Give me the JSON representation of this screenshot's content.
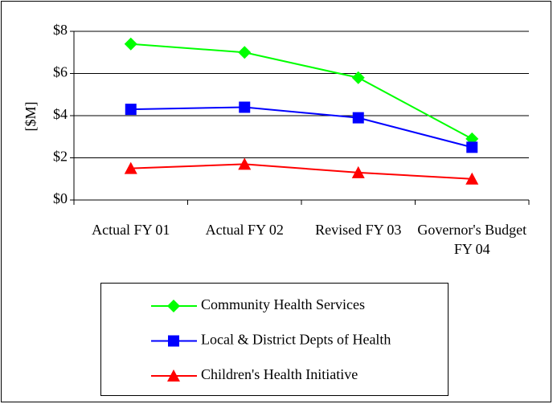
{
  "chart_data": {
    "type": "line",
    "y_label": "[$M]",
    "categories": [
      "Actual FY 01",
      "Actual FY 02",
      "Revised FY 03",
      "Governor's Budget FY 04"
    ],
    "series": [
      {
        "name": "Community Health Services",
        "color": "#00ff00",
        "marker": "diamond",
        "values": [
          7.4,
          7.0,
          5.8,
          2.9
        ]
      },
      {
        "name": "Local & District Depts of Health",
        "color": "#0000ff",
        "marker": "square",
        "values": [
          4.3,
          4.4,
          3.9,
          2.5
        ]
      },
      {
        "name": "Children's Health Initiative",
        "color": "#ff0000",
        "marker": "triangle",
        "values": [
          1.5,
          1.7,
          1.3,
          1.0
        ]
      }
    ],
    "ylim": [
      0,
      8
    ],
    "yticks": [
      {
        "value": 0,
        "label": "$0"
      },
      {
        "value": 2,
        "label": "$2"
      },
      {
        "value": 4,
        "label": "$4"
      },
      {
        "value": 6,
        "label": "$6"
      },
      {
        "value": 8,
        "label": "$8"
      }
    ],
    "grid": true,
    "legend": "bottom"
  }
}
